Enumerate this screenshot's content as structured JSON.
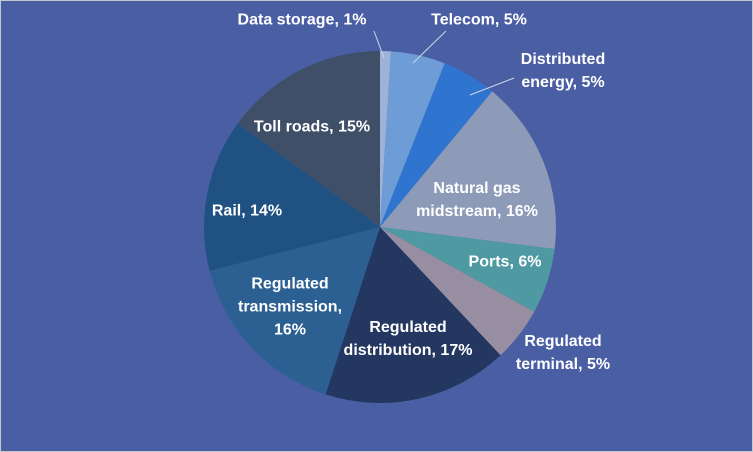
{
  "chart_data": {
    "type": "pie",
    "title": "",
    "background": "#4a5ea4",
    "label_color": "#ffffff",
    "leader_line_color": "#cdd6e6",
    "start_angle_deg": 0,
    "direction": "clockwise",
    "slices": [
      {
        "name": "Data storage",
        "value": 1,
        "label": "Data storage, 1%",
        "color": "#9db2d6"
      },
      {
        "name": "Telecom",
        "value": 5,
        "label": "Telecom, 5%",
        "color": "#6d9cd6"
      },
      {
        "name": "Distributed energy",
        "value": 5,
        "label": "Distributed\nenergy, 5%",
        "color": "#2f74ce"
      },
      {
        "name": "Natural gas midstream",
        "value": 16,
        "label": "Natural gas\nmidstream, 16%",
        "color": "#8d9bb8"
      },
      {
        "name": "Ports",
        "value": 6,
        "label": "Ports, 6%",
        "color": "#4f99a3"
      },
      {
        "name": "Regulated terminal",
        "value": 5,
        "label": "Regulated\nterminal, 5%",
        "color": "#978ea1"
      },
      {
        "name": "Regulated distribution",
        "value": 17,
        "label": "Regulated\ndistribution, 17%",
        "color": "#243760"
      },
      {
        "name": "Regulated transmission",
        "value": 16,
        "label": "Regulated\ntransmission,\n16%",
        "color": "#2c5f92"
      },
      {
        "name": "Rail",
        "value": 14,
        "label": "Rail, 14%",
        "color": "#1f5182"
      },
      {
        "name": "Toll roads",
        "value": 15,
        "label": "Toll roads, 15%",
        "color": "#404f68"
      }
    ]
  }
}
